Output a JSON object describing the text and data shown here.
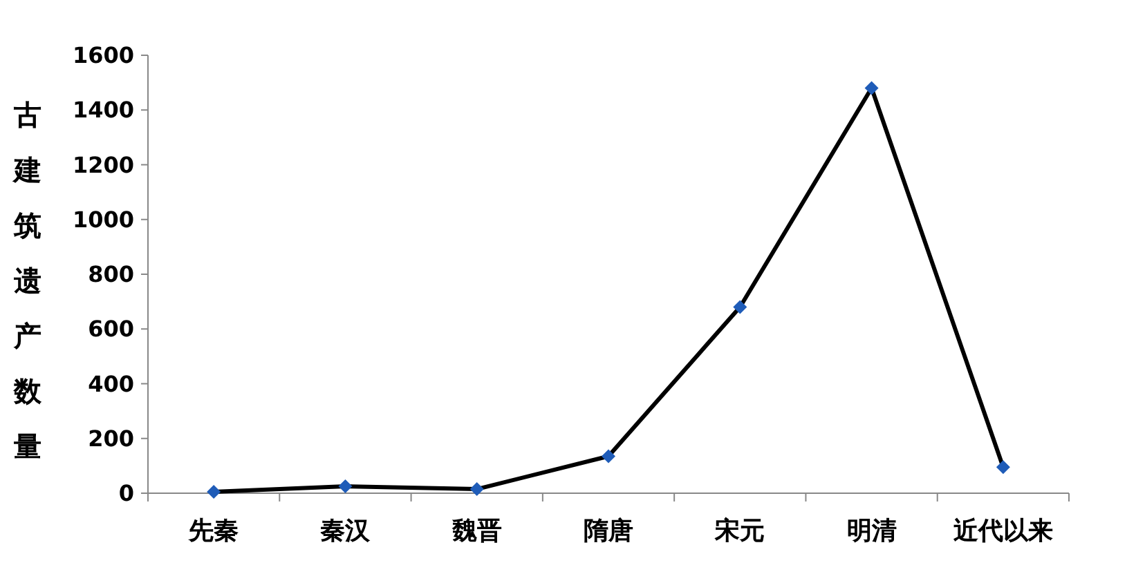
{
  "chart_data": {
    "type": "line",
    "ylabel": "古建筑遗产数量",
    "categories": [
      "先秦",
      "秦汉",
      "魏晋",
      "隋唐",
      "宋元",
      "明清",
      "近代以来"
    ],
    "series": [
      {
        "color": "#000000",
        "values": [
          5,
          25,
          15,
          135,
          680,
          1480,
          95
        ]
      }
    ],
    "ylim": [
      0,
      1600
    ],
    "yticks": [
      0,
      200,
      400,
      600,
      800,
      1000,
      1200,
      1400,
      1600
    ],
    "grid": false,
    "marker": "diamond",
    "line_style": "solid"
  }
}
